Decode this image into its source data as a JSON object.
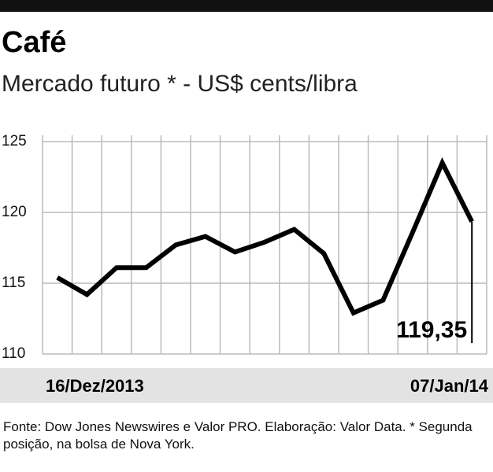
{
  "chart_data": {
    "type": "line",
    "title": "Café",
    "subtitle": "Mercado futuro * - US$ cents/libra",
    "categories": [
      "16/Dez/2013",
      null,
      null,
      null,
      null,
      null,
      null,
      null,
      null,
      null,
      null,
      null,
      null,
      null,
      "07/Jan/14"
    ],
    "series": [
      {
        "name": "Café",
        "color": "#000000",
        "values": [
          115.4,
          114.2,
          116.1,
          116.1,
          117.7,
          118.3,
          117.2,
          117.9,
          118.8,
          117.1,
          112.9,
          113.8,
          118.6,
          123.5,
          119.35
        ],
        "value_labels": [
          null,
          null,
          null,
          null,
          null,
          null,
          null,
          null,
          null,
          null,
          null,
          null,
          null,
          null,
          "119,35"
        ]
      }
    ],
    "ylim": [
      110,
      125
    ],
    "yticks": [
      110,
      115,
      120,
      125
    ],
    "grid": true,
    "source": "Fonte: Dow Jones Newswires e Valor PRO. Elaboração: Valor Data. * Segunda posição, na bolsa de Nova York."
  }
}
